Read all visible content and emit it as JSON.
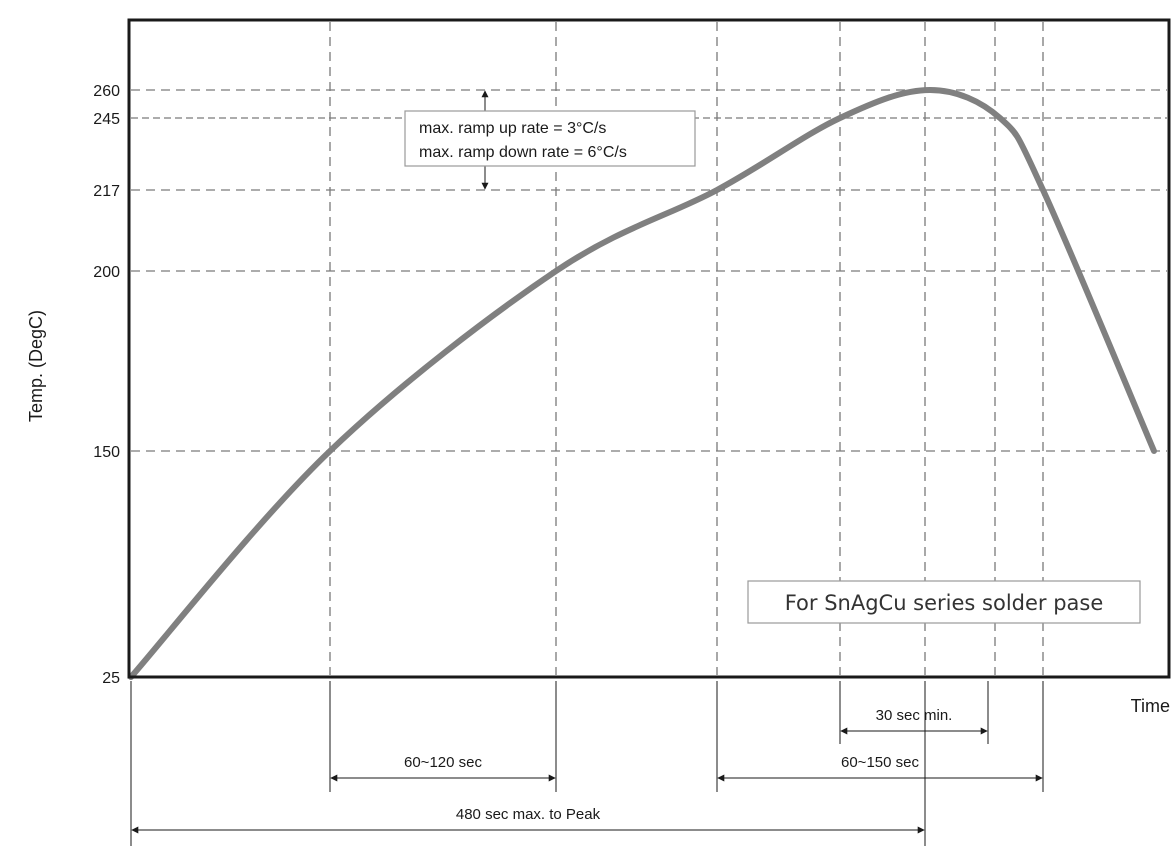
{
  "chart_data": {
    "type": "line",
    "title": "",
    "xlabel": "Time",
    "ylabel": "Temp. (DegC)",
    "y_ticks": [
      25,
      150,
      200,
      217,
      245,
      260
    ],
    "series": [
      {
        "x": [
          0,
          100,
          200,
          300,
          380,
          440,
          480,
          500,
          530
        ],
        "y": [
          25,
          150,
          200,
          217,
          245,
          260,
          245,
          217,
          150
        ]
      }
    ],
    "annotations": {
      "ramp_up": "max. ramp up rate = 3°C/s",
      "ramp_down": "max. ramp down rate = 6°C/s",
      "legend_box": "For SnAgCu series solder pase"
    },
    "intervals": [
      {
        "label": "30 sec min.",
        "from": 380,
        "to": 470
      },
      {
        "label": "60~120 sec",
        "from": 100,
        "to": 200
      },
      {
        "label": "60~150 sec",
        "from": 300,
        "to": 500
      },
      {
        "label": "480 sec max. to Peak",
        "from": 0,
        "to": 480
      }
    ],
    "colors": {
      "curve": "#808080",
      "grid": "#7a7a7a",
      "frame": "#1a1a1a"
    }
  }
}
